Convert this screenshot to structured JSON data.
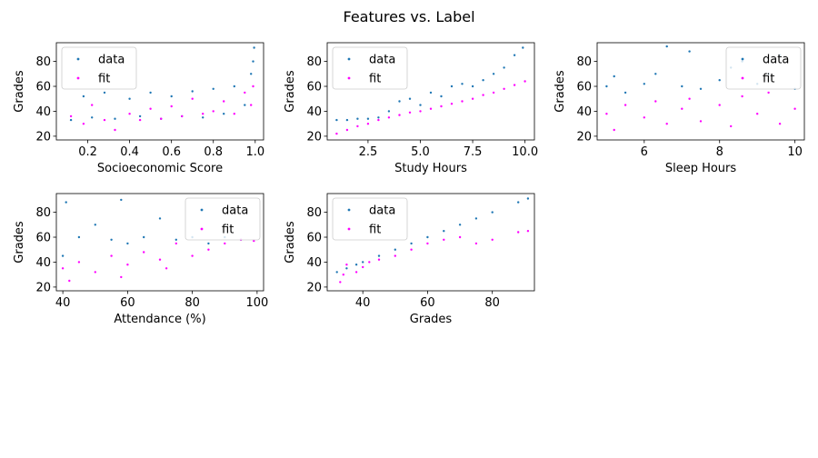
{
  "figure": {
    "title": "Features vs. Label"
  },
  "legend": {
    "data_label": "data",
    "fit_label": "fit"
  },
  "colors": {
    "data": "#1f77b4",
    "fit": "#ff00ff"
  },
  "chart_data": [
    {
      "type": "scatter",
      "xlabel": "Socioeconomic Score",
      "ylabel": "Grades",
      "xlim": [
        0.05,
        1.04
      ],
      "ylim": [
        17,
        95
      ],
      "xticks": [
        "0.2",
        "0.4",
        "0.6",
        "0.8",
        "1.0"
      ],
      "yticks": [
        "20",
        "40",
        "60",
        "80"
      ],
      "legend_position": "top-left",
      "series": [
        {
          "name": "data",
          "points": [
            [
              0.12,
              33
            ],
            [
              0.18,
              52
            ],
            [
              0.22,
              35
            ],
            [
              0.28,
              55
            ],
            [
              0.33,
              34
            ],
            [
              0.4,
              50
            ],
            [
              0.45,
              36
            ],
            [
              0.5,
              55
            ],
            [
              0.55,
              34
            ],
            [
              0.6,
              52
            ],
            [
              0.65,
              36
            ],
            [
              0.7,
              56
            ],
            [
              0.75,
              35
            ],
            [
              0.8,
              58
            ],
            [
              0.85,
              38
            ],
            [
              0.9,
              60
            ],
            [
              0.95,
              45
            ],
            [
              0.98,
              70
            ],
            [
              0.99,
              80
            ],
            [
              0.995,
              91
            ]
          ]
        },
        {
          "name": "fit",
          "points": [
            [
              0.12,
              36
            ],
            [
              0.18,
              30
            ],
            [
              0.22,
              45
            ],
            [
              0.28,
              33
            ],
            [
              0.33,
              25
            ],
            [
              0.4,
              38
            ],
            [
              0.45,
              33
            ],
            [
              0.5,
              42
            ],
            [
              0.55,
              34
            ],
            [
              0.6,
              44
            ],
            [
              0.65,
              36
            ],
            [
              0.7,
              50
            ],
            [
              0.75,
              38
            ],
            [
              0.8,
              40
            ],
            [
              0.85,
              48
            ],
            [
              0.9,
              38
            ],
            [
              0.95,
              55
            ],
            [
              0.98,
              45
            ],
            [
              0.99,
              60
            ]
          ]
        }
      ]
    },
    {
      "type": "scatter",
      "xlabel": "Study Hours",
      "ylabel": "Grades",
      "xlim": [
        0.55,
        10.45
      ],
      "ylim": [
        17,
        95
      ],
      "xticks": [
        "2.5",
        "5.0",
        "7.5",
        "10.0"
      ],
      "yticks": [
        "20",
        "40",
        "60",
        "80"
      ],
      "legend_position": "top-left",
      "series": [
        {
          "name": "data",
          "points": [
            [
              1,
              33
            ],
            [
              1.5,
              33
            ],
            [
              2,
              34
            ],
            [
              2.5,
              34
            ],
            [
              3,
              35
            ],
            [
              3.5,
              40
            ],
            [
              4,
              48
            ],
            [
              4.5,
              50
            ],
            [
              5,
              45
            ],
            [
              5.5,
              55
            ],
            [
              6,
              52
            ],
            [
              6.5,
              60
            ],
            [
              7,
              62
            ],
            [
              7.5,
              60
            ],
            [
              8,
              65
            ],
            [
              8.5,
              70
            ],
            [
              9,
              75
            ],
            [
              9.5,
              85
            ],
            [
              9.9,
              91
            ]
          ]
        },
        {
          "name": "fit",
          "points": [
            [
              1,
              22
            ],
            [
              1.5,
              25
            ],
            [
              2,
              28
            ],
            [
              2.5,
              30
            ],
            [
              3,
              33
            ],
            [
              3.5,
              35
            ],
            [
              4,
              37
            ],
            [
              4.5,
              39
            ],
            [
              5,
              40
            ],
            [
              5.5,
              42
            ],
            [
              6,
              44
            ],
            [
              6.5,
              46
            ],
            [
              7,
              48
            ],
            [
              7.5,
              50
            ],
            [
              8,
              53
            ],
            [
              8.5,
              55
            ],
            [
              9,
              58
            ],
            [
              9.5,
              61
            ],
            [
              10,
              64
            ]
          ]
        }
      ]
    },
    {
      "type": "scatter",
      "xlabel": "Sleep Hours",
      "ylabel": "Grades",
      "xlim": [
        4.75,
        10.25
      ],
      "ylim": [
        17,
        95
      ],
      "xticks": [
        "6",
        "8",
        "10"
      ],
      "yticks": [
        "20",
        "40",
        "60",
        "80"
      ],
      "legend_position": "top-right",
      "series": [
        {
          "name": "data",
          "points": [
            [
              5,
              60
            ],
            [
              5.2,
              68
            ],
            [
              5.5,
              55
            ],
            [
              6,
              62
            ],
            [
              6.3,
              70
            ],
            [
              6.6,
              92
            ],
            [
              7,
              60
            ],
            [
              7.2,
              88
            ],
            [
              7.5,
              58
            ],
            [
              8,
              65
            ],
            [
              8.3,
              75
            ],
            [
              8.6,
              80
            ],
            [
              9,
              62
            ],
            [
              9.3,
              70
            ],
            [
              9.6,
              85
            ],
            [
              10,
              58
            ]
          ]
        },
        {
          "name": "fit",
          "points": [
            [
              5,
              38
            ],
            [
              5.2,
              25
            ],
            [
              5.5,
              45
            ],
            [
              6,
              35
            ],
            [
              6.3,
              48
            ],
            [
              6.6,
              30
            ],
            [
              7,
              42
            ],
            [
              7.2,
              50
            ],
            [
              7.5,
              32
            ],
            [
              8,
              45
            ],
            [
              8.3,
              28
            ],
            [
              8.6,
              52
            ],
            [
              9,
              38
            ],
            [
              9.3,
              55
            ],
            [
              9.6,
              30
            ],
            [
              10,
              42
            ]
          ]
        }
      ]
    },
    {
      "type": "scatter",
      "xlabel": "Attendance (%)",
      "ylabel": "Grades",
      "xlim": [
        38,
        102
      ],
      "ylim": [
        17,
        95
      ],
      "xticks": [
        "40",
        "60",
        "80",
        "100"
      ],
      "yticks": [
        "20",
        "40",
        "60",
        "80"
      ],
      "legend_position": "top-right",
      "series": [
        {
          "name": "data",
          "points": [
            [
              40,
              45
            ],
            [
              41,
              88
            ],
            [
              45,
              60
            ],
            [
              50,
              70
            ],
            [
              55,
              58
            ],
            [
              58,
              90
            ],
            [
              60,
              55
            ],
            [
              65,
              60
            ],
            [
              70,
              75
            ],
            [
              75,
              58
            ],
            [
              80,
              60
            ],
            [
              85,
              55
            ],
            [
              90,
              60
            ],
            [
              95,
              58
            ]
          ]
        },
        {
          "name": "fit",
          "points": [
            [
              40,
              35
            ],
            [
              42,
              25
            ],
            [
              45,
              40
            ],
            [
              50,
              32
            ],
            [
              55,
              45
            ],
            [
              58,
              28
            ],
            [
              60,
              38
            ],
            [
              65,
              48
            ],
            [
              70,
              42
            ],
            [
              72,
              35
            ],
            [
              75,
              55
            ],
            [
              80,
              45
            ],
            [
              85,
              50
            ],
            [
              90,
              55
            ],
            [
              95,
              58
            ],
            [
              99,
              57
            ]
          ]
        }
      ]
    },
    {
      "type": "scatter",
      "xlabel": "Grades",
      "ylabel": "Grades",
      "xlim": [
        29,
        93
      ],
      "ylim": [
        17,
        95
      ],
      "xticks": [
        "40",
        "60",
        "80"
      ],
      "yticks": [
        "20",
        "40",
        "60",
        "80"
      ],
      "legend_position": "top-left",
      "series": [
        {
          "name": "data",
          "points": [
            [
              32,
              32
            ],
            [
              35,
              35
            ],
            [
              38,
              38
            ],
            [
              40,
              40
            ],
            [
              45,
              45
            ],
            [
              50,
              50
            ],
            [
              55,
              55
            ],
            [
              60,
              60
            ],
            [
              65,
              65
            ],
            [
              70,
              70
            ],
            [
              75,
              75
            ],
            [
              80,
              80
            ],
            [
              88,
              88
            ],
            [
              91,
              91
            ]
          ]
        },
        {
          "name": "fit",
          "points": [
            [
              33,
              24
            ],
            [
              34,
              30
            ],
            [
              35,
              38
            ],
            [
              38,
              32
            ],
            [
              40,
              36
            ],
            [
              42,
              40
            ],
            [
              45,
              42
            ],
            [
              50,
              45
            ],
            [
              55,
              50
            ],
            [
              60,
              55
            ],
            [
              65,
              58
            ],
            [
              70,
              60
            ],
            [
              75,
              55
            ],
            [
              80,
              58
            ],
            [
              88,
              64
            ],
            [
              91,
              65
            ]
          ]
        }
      ]
    }
  ]
}
